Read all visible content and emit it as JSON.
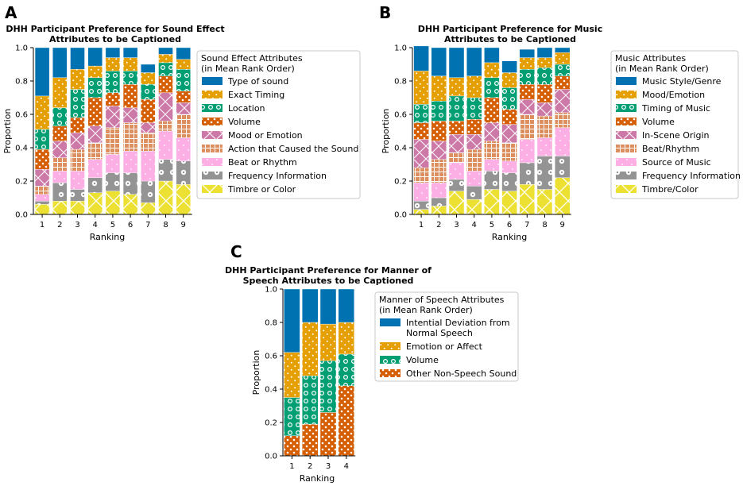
{
  "panels": [
    {
      "id": "A",
      "letter": "A"
    },
    {
      "id": "B",
      "letter": "B"
    },
    {
      "id": "C",
      "letter": "C"
    }
  ],
  "colors": {
    "blue": "#0072B2",
    "orange": "#E69F00",
    "green": "#009E73",
    "vermillion": "#D55E00",
    "purple": "#CC79A7",
    "tan": "#DE8F5F",
    "pink": "#FBAFE4",
    "gray": "#949494",
    "yellow": "#ECE133"
  },
  "chart_data": [
    {
      "id": "A",
      "type": "bar",
      "stacked": true,
      "title_lines": [
        "DHH Participant Preference for Sound Effect",
        "Attributes to be Captioned"
      ],
      "xlabel": "Ranking",
      "ylabel": "Proportion",
      "ylim": [
        0,
        1
      ],
      "yticks": [
        "0.0",
        "0.2",
        "0.4",
        "0.6",
        "0.8",
        "1.0"
      ],
      "categories": [
        "1",
        "2",
        "3",
        "4",
        "5",
        "6",
        "7",
        "8",
        "9"
      ],
      "legend_title": [
        "Sound Effect Attributes",
        "(in Mean Rank Order)"
      ],
      "series": [
        {
          "name": "Type of sound",
          "color": "#0072B2",
          "pattern": "solid",
          "values": [
            0.29,
            0.18,
            0.13,
            0.11,
            0.06,
            0.06,
            0.05,
            0.04,
            0.07
          ]
        },
        {
          "name": "Exact Timing",
          "color": "#E69F00",
          "pattern": "dots",
          "values": [
            0.2,
            0.18,
            0.12,
            0.07,
            0.08,
            0.08,
            0.07,
            0.05,
            0.06
          ]
        },
        {
          "name": "Location",
          "color": "#009E73",
          "pattern": "circles",
          "values": [
            0.12,
            0.11,
            0.17,
            0.12,
            0.13,
            0.08,
            0.09,
            0.08,
            0.13
          ]
        },
        {
          "name": "Volume",
          "color": "#D55E00",
          "pattern": "dotsred",
          "values": [
            0.12,
            0.09,
            0.09,
            0.17,
            0.08,
            0.14,
            0.14,
            0.1,
            0.07
          ]
        },
        {
          "name": "Mood or Emotion",
          "color": "#CC79A7",
          "pattern": "cross",
          "values": [
            0.1,
            0.1,
            0.1,
            0.1,
            0.13,
            0.09,
            0.06,
            0.17,
            0.07
          ]
        },
        {
          "name": "Action that Caused the Sound",
          "color": "#DE8F5F",
          "pattern": "grid",
          "values": [
            0.05,
            0.08,
            0.13,
            0.1,
            0.16,
            0.17,
            0.11,
            0.06,
            0.14
          ]
        },
        {
          "name": "Beat or Rhythm",
          "color": "#FBAFE4",
          "pattern": "dotspink",
          "values": [
            0.04,
            0.07,
            0.11,
            0.11,
            0.11,
            0.13,
            0.18,
            0.17,
            0.14
          ]
        },
        {
          "name": "Frequency Information",
          "color": "#949494",
          "pattern": "rings",
          "values": [
            0.02,
            0.11,
            0.07,
            0.09,
            0.11,
            0.13,
            0.13,
            0.13,
            0.14
          ]
        },
        {
          "name": "Timbre or Color",
          "color": "#ECE133",
          "pattern": "x",
          "values": [
            0.06,
            0.08,
            0.08,
            0.13,
            0.14,
            0.12,
            0.07,
            0.2,
            0.18
          ]
        }
      ]
    },
    {
      "id": "B",
      "type": "bar",
      "stacked": true,
      "title_lines": [
        "DHH Participant Preference for Music",
        "Attributes to be Captioned"
      ],
      "xlabel": "Ranking",
      "ylabel": "Proportion",
      "ylim": [
        0,
        1
      ],
      "yticks": [
        "0.0",
        "0.2",
        "0.4",
        "0.6",
        "0.8",
        "1.0"
      ],
      "categories": [
        "1",
        "2",
        "3",
        "4",
        "5",
        "6",
        "7",
        "8",
        "9"
      ],
      "legend_title": [
        "Music Attributes",
        "(in Mean Rank Order)"
      ],
      "series": [
        {
          "name": "Music Style/Genre",
          "color": "#0072B2",
          "pattern": "solid",
          "values": [
            0.15,
            0.17,
            0.18,
            0.17,
            0.09,
            0.07,
            0.05,
            0.06,
            0.03
          ]
        },
        {
          "name": "Mood/Emotion",
          "color": "#E69F00",
          "pattern": "dots",
          "values": [
            0.2,
            0.15,
            0.11,
            0.13,
            0.09,
            0.09,
            0.07,
            0.06,
            0.07
          ]
        },
        {
          "name": "Timing of Music",
          "color": "#009E73",
          "pattern": "circles",
          "values": [
            0.11,
            0.12,
            0.15,
            0.13,
            0.12,
            0.13,
            0.09,
            0.1,
            0.07
          ]
        },
        {
          "name": "Volume",
          "color": "#D55E00",
          "pattern": "dotsred",
          "values": [
            0.1,
            0.12,
            0.08,
            0.09,
            0.15,
            0.09,
            0.09,
            0.11,
            0.08
          ]
        },
        {
          "name": "In-Scene Origin",
          "color": "#CC79A7",
          "pattern": "cross",
          "values": [
            0.17,
            0.11,
            0.11,
            0.09,
            0.11,
            0.11,
            0.09,
            0.08,
            0.14
          ]
        },
        {
          "name": "Beat/Rhythm",
          "color": "#DE8F5F",
          "pattern": "grid",
          "values": [
            0.09,
            0.14,
            0.06,
            0.13,
            0.11,
            0.11,
            0.15,
            0.13,
            0.09
          ]
        },
        {
          "name": "Source of Music",
          "color": "#FBAFE4",
          "pattern": "dotspink",
          "values": [
            0.11,
            0.09,
            0.1,
            0.09,
            0.07,
            0.07,
            0.14,
            0.11,
            0.17
          ]
        },
        {
          "name": "Frequency Information",
          "color": "#949494",
          "pattern": "rings",
          "values": [
            0.05,
            0.05,
            0.07,
            0.08,
            0.11,
            0.11,
            0.13,
            0.2,
            0.13
          ]
        },
        {
          "name": "Timbre/Color",
          "color": "#ECE133",
          "pattern": "x",
          "values": [
            0.03,
            0.05,
            0.14,
            0.09,
            0.15,
            0.14,
            0.18,
            0.15,
            0.22
          ]
        }
      ]
    },
    {
      "id": "C",
      "type": "bar",
      "stacked": true,
      "title_lines": [
        "DHH Participant Preference for Manner of",
        "Speech Attributes to be Captioned"
      ],
      "xlabel": "Ranking",
      "ylabel": "Proportion",
      "ylim": [
        0,
        1
      ],
      "yticks": [
        "0.0",
        "0.2",
        "0.4",
        "0.6",
        "0.8",
        "1.0"
      ],
      "categories": [
        "1",
        "2",
        "3",
        "4"
      ],
      "legend_title": [
        "Manner of Speech Attributes",
        "(in Mean Rank Order)"
      ],
      "series": [
        {
          "name": "Intential Deviation from Normal Speech",
          "name_lines": [
            "Intential Deviation from",
            "Normal Speech"
          ],
          "color": "#0072B2",
          "pattern": "solid",
          "values": [
            0.38,
            0.2,
            0.21,
            0.2
          ]
        },
        {
          "name": "Emotion or Affect",
          "color": "#E69F00",
          "pattern": "dots",
          "values": [
            0.27,
            0.32,
            0.22,
            0.19
          ]
        },
        {
          "name": "Volume",
          "color": "#009E73",
          "pattern": "circles",
          "values": [
            0.23,
            0.29,
            0.31,
            0.19
          ]
        },
        {
          "name": "Other Non-Speech Sound",
          "color": "#D55E00",
          "pattern": "dotsred",
          "values": [
            0.12,
            0.19,
            0.26,
            0.42
          ]
        }
      ]
    }
  ]
}
